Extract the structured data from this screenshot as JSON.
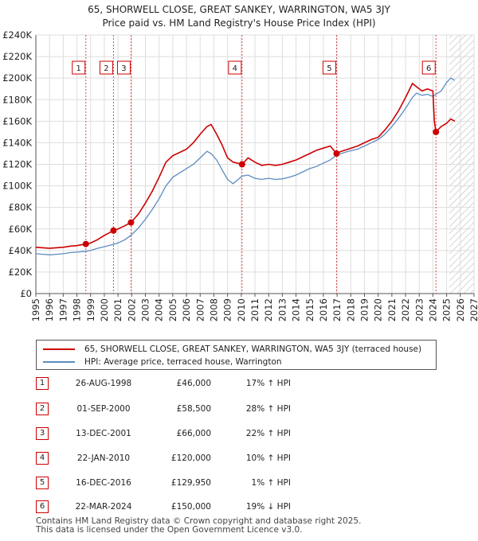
{
  "title_line1": "65, SHORWELL CLOSE, GREAT SANKEY, WARRINGTON, WA5 3JY",
  "title_line2": "Price paid vs. HM Land Registry's House Price Index (HPI)",
  "chart_data": {
    "type": "line",
    "xlim": [
      1995,
      2027
    ],
    "ylim": [
      0,
      240000
    ],
    "x_ticks": [
      "1995",
      "1996",
      "1997",
      "1998",
      "1999",
      "2000",
      "2001",
      "2002",
      "2003",
      "2004",
      "2005",
      "2006",
      "2007",
      "2008",
      "2009",
      "2010",
      "2011",
      "2012",
      "2013",
      "2014",
      "2015",
      "2016",
      "2017",
      "2018",
      "2019",
      "2020",
      "2021",
      "2022",
      "2023",
      "2024",
      "2025",
      "2026",
      "2027"
    ],
    "y_ticks": [
      {
        "value": 0,
        "label": "£0"
      },
      {
        "value": 20000,
        "label": "£20K"
      },
      {
        "value": 40000,
        "label": "£40K"
      },
      {
        "value": 60000,
        "label": "£60K"
      },
      {
        "value": 80000,
        "label": "£80K"
      },
      {
        "value": 100000,
        "label": "£100K"
      },
      {
        "value": 120000,
        "label": "£120K"
      },
      {
        "value": 140000,
        "label": "£140K"
      },
      {
        "value": 160000,
        "label": "£160K"
      },
      {
        "value": 180000,
        "label": "£180K"
      },
      {
        "value": 200000,
        "label": "£200K"
      },
      {
        "value": 220000,
        "label": "£220K"
      },
      {
        "value": 240000,
        "label": "£240K"
      }
    ],
    "future_start": 2025.2,
    "series": [
      {
        "name": "65, SHORWELL CLOSE, GREAT SANKEY, WARRINGTON, WA5 3JY (terraced house)",
        "color": "#cc0000",
        "points": [
          [
            1995.0,
            43000
          ],
          [
            1995.5,
            42500
          ],
          [
            1996.0,
            42000
          ],
          [
            1996.5,
            42500
          ],
          [
            1997.0,
            43000
          ],
          [
            1997.5,
            44000
          ],
          [
            1998.0,
            44500
          ],
          [
            1998.65,
            46000
          ],
          [
            1999.0,
            47000
          ],
          [
            1999.5,
            50000
          ],
          [
            2000.0,
            54000
          ],
          [
            2000.67,
            58500
          ],
          [
            2001.0,
            60000
          ],
          [
            2001.5,
            63000
          ],
          [
            2001.95,
            66000
          ],
          [
            2002.5,
            74000
          ],
          [
            2003.0,
            84000
          ],
          [
            2003.5,
            95000
          ],
          [
            2004.0,
            108000
          ],
          [
            2004.5,
            122000
          ],
          [
            2005.0,
            128000
          ],
          [
            2005.5,
            131000
          ],
          [
            2006.0,
            134000
          ],
          [
            2006.5,
            140000
          ],
          [
            2007.0,
            148000
          ],
          [
            2007.5,
            155000
          ],
          [
            2007.8,
            157000
          ],
          [
            2008.2,
            148000
          ],
          [
            2008.6,
            138000
          ],
          [
            2009.0,
            126000
          ],
          [
            2009.4,
            122000
          ],
          [
            2010.06,
            120000
          ],
          [
            2010.5,
            126000
          ],
          [
            2011.0,
            122000
          ],
          [
            2011.5,
            119000
          ],
          [
            2012.0,
            120000
          ],
          [
            2012.5,
            119000
          ],
          [
            2013.0,
            120000
          ],
          [
            2013.5,
            122000
          ],
          [
            2014.0,
            124000
          ],
          [
            2014.5,
            127000
          ],
          [
            2015.0,
            130000
          ],
          [
            2015.5,
            133000
          ],
          [
            2016.0,
            135000
          ],
          [
            2016.5,
            137000
          ],
          [
            2016.96,
            129950
          ],
          [
            2017.3,
            132000
          ],
          [
            2017.8,
            134000
          ],
          [
            2018.5,
            137000
          ],
          [
            2019.0,
            140000
          ],
          [
            2019.5,
            143000
          ],
          [
            2020.0,
            145000
          ],
          [
            2020.5,
            152000
          ],
          [
            2021.0,
            160000
          ],
          [
            2021.5,
            170000
          ],
          [
            2022.0,
            182000
          ],
          [
            2022.5,
            195000
          ],
          [
            2022.8,
            192000
          ],
          [
            2023.2,
            188000
          ],
          [
            2023.6,
            190000
          ],
          [
            2024.0,
            188000
          ],
          [
            2024.1,
            160000
          ],
          [
            2024.22,
            150000
          ],
          [
            2024.6,
            155000
          ],
          [
            2025.0,
            158000
          ],
          [
            2025.3,
            162000
          ],
          [
            2025.6,
            160000
          ]
        ]
      },
      {
        "name": "HPI: Average price, terraced house, Warrington",
        "color": "#5b8cc0",
        "points": [
          [
            1995.0,
            37000
          ],
          [
            1995.5,
            36500
          ],
          [
            1996.0,
            36000
          ],
          [
            1996.5,
            36500
          ],
          [
            1997.0,
            37000
          ],
          [
            1997.5,
            38000
          ],
          [
            1998.0,
            38500
          ],
          [
            1998.65,
            39300
          ],
          [
            1999.0,
            40000
          ],
          [
            1999.5,
            42000
          ],
          [
            2000.0,
            43500
          ],
          [
            2000.67,
            45700
          ],
          [
            2001.0,
            47000
          ],
          [
            2001.5,
            50000
          ],
          [
            2001.95,
            54100
          ],
          [
            2002.5,
            61000
          ],
          [
            2003.0,
            69000
          ],
          [
            2003.5,
            78000
          ],
          [
            2004.0,
            88000
          ],
          [
            2004.5,
            100000
          ],
          [
            2005.0,
            108000
          ],
          [
            2005.5,
            112000
          ],
          [
            2006.0,
            116000
          ],
          [
            2006.5,
            120000
          ],
          [
            2007.0,
            126000
          ],
          [
            2007.5,
            132000
          ],
          [
            2007.8,
            130000
          ],
          [
            2008.2,
            124000
          ],
          [
            2008.6,
            115000
          ],
          [
            2009.0,
            106000
          ],
          [
            2009.4,
            102000
          ],
          [
            2010.06,
            109000
          ],
          [
            2010.5,
            110000
          ],
          [
            2011.0,
            107000
          ],
          [
            2011.5,
            106000
          ],
          [
            2012.0,
            107000
          ],
          [
            2012.5,
            106000
          ],
          [
            2013.0,
            106500
          ],
          [
            2013.5,
            108000
          ],
          [
            2014.0,
            110000
          ],
          [
            2014.5,
            113000
          ],
          [
            2015.0,
            116000
          ],
          [
            2015.5,
            118000
          ],
          [
            2016.0,
            121000
          ],
          [
            2016.5,
            124000
          ],
          [
            2016.96,
            128700
          ],
          [
            2017.3,
            130000
          ],
          [
            2017.8,
            132000
          ],
          [
            2018.5,
            134000
          ],
          [
            2019.0,
            137000
          ],
          [
            2019.5,
            140000
          ],
          [
            2020.0,
            143000
          ],
          [
            2020.5,
            148000
          ],
          [
            2021.0,
            155000
          ],
          [
            2021.5,
            163000
          ],
          [
            2022.0,
            172000
          ],
          [
            2022.5,
            182000
          ],
          [
            2022.8,
            186000
          ],
          [
            2023.2,
            184000
          ],
          [
            2023.6,
            185000
          ],
          [
            2024.0,
            183000
          ],
          [
            2024.22,
            185000
          ],
          [
            2024.6,
            188000
          ],
          [
            2025.0,
            196000
          ],
          [
            2025.3,
            200000
          ],
          [
            2025.6,
            198000
          ]
        ]
      }
    ],
    "sales": [
      {
        "label": "1",
        "x": 1998.65,
        "y": 46000
      },
      {
        "label": "2",
        "x": 2000.67,
        "y": 58500
      },
      {
        "label": "3",
        "x": 2001.95,
        "y": 66000
      },
      {
        "label": "4",
        "x": 2010.06,
        "y": 120000
      },
      {
        "label": "5",
        "x": 2016.96,
        "y": 129950
      },
      {
        "label": "6",
        "x": 2024.22,
        "y": 150000
      }
    ]
  },
  "legend": {
    "red_label": "65, SHORWELL CLOSE, GREAT SANKEY, WARRINGTON, WA5 3JY (terraced house)",
    "blue_label": "HPI: Average price, terraced house, Warrington"
  },
  "table": [
    {
      "num": "1",
      "date": "26-AUG-1998",
      "price": "£46,000",
      "hpi": "17% ↑ HPI"
    },
    {
      "num": "2",
      "date": "01-SEP-2000",
      "price": "£58,500",
      "hpi": "28% ↑ HPI"
    },
    {
      "num": "3",
      "date": "13-DEC-2001",
      "price": "£66,000",
      "hpi": "22% ↑ HPI"
    },
    {
      "num": "4",
      "date": "22-JAN-2010",
      "price": "£120,000",
      "hpi": "10% ↑ HPI"
    },
    {
      "num": "5",
      "date": "16-DEC-2016",
      "price": "£129,950",
      "hpi": "1% ↑ HPI"
    },
    {
      "num": "6",
      "date": "22-MAR-2024",
      "price": "£150,000",
      "hpi": "19% ↓ HPI"
    }
  ],
  "footer_line1": "Contains HM Land Registry data © Crown copyright and database right 2025.",
  "footer_line2": "This data is licensed under the Open Government Licence v3.0."
}
